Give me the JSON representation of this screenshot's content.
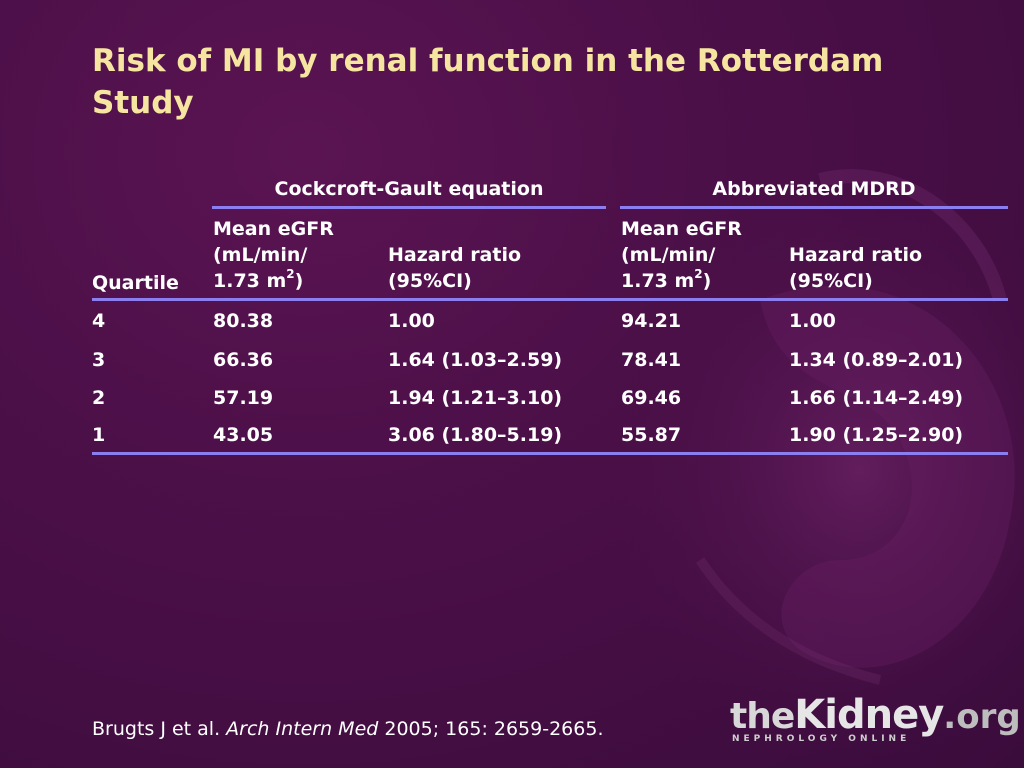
{
  "slide": {
    "title": "Risk of MI by renal function in the Rotterdam Study"
  },
  "table": {
    "group_headers": [
      "Cockcroft-Gault equation",
      "Abbreviated MDRD"
    ],
    "col_quartile": "Quartile",
    "col_egfr_line1": "Mean eGFR",
    "col_egfr_line2": "(mL/min/",
    "col_egfr_line3a": "1.73 m",
    "col_egfr_sup": "2",
    "col_egfr_line3b": ")",
    "col_hr_line1": "Hazard ratio",
    "col_hr_line2": "(95%CI)",
    "rows": [
      [
        "4",
        "80.38",
        "1.00",
        "94.21",
        "1.00"
      ],
      [
        "3",
        "66.36",
        "1.64 (1.03–2.59)",
        "78.41",
        "1.34 (0.89–2.01)"
      ],
      [
        "2",
        "57.19",
        "1.94 (1.21–3.10)",
        "69.46",
        "1.66 (1.14–2.49)"
      ],
      [
        "1",
        "43.05",
        "3.06 (1.80–5.19)",
        "55.87",
        "1.90 (1.25–2.90)"
      ]
    ]
  },
  "footer": {
    "authors": "Brugts J et al. ",
    "journal": "Arch Intern Med",
    "citation": " 2005; 165: 2659-2665."
  },
  "logo": {
    "the": "the",
    "kidney": "Kidney",
    "org": ".org",
    "tagline": "NEPHROLOGY ONLINE"
  },
  "colors": {
    "background": "#4a0f47",
    "title": "#f5e5a0",
    "rule": "#8a7ef0"
  }
}
